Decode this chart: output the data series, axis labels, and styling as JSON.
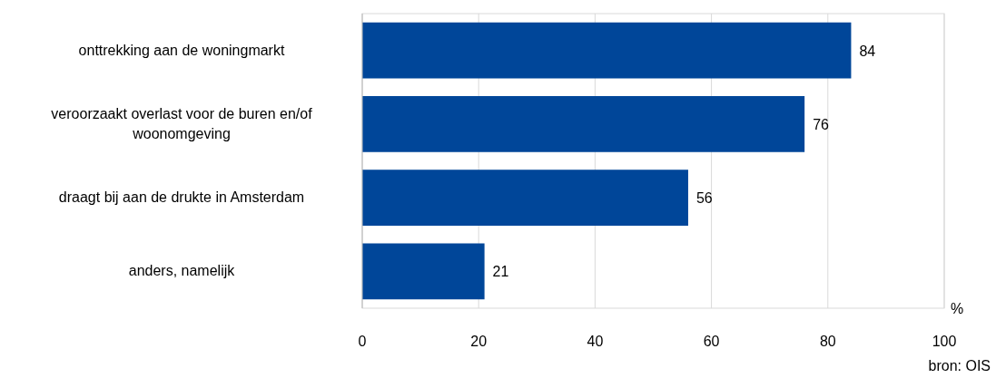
{
  "chart_data": {
    "type": "bar",
    "orientation": "horizontal",
    "categories": [
      "onttrekking aan de woningmarkt",
      "veroorzaakt overlast voor de buren en/of woonomgeving",
      "draagt bij aan de drukte in Amsterdam",
      "anders, namelijk"
    ],
    "values": [
      84,
      76,
      56,
      21
    ],
    "color": "#004699",
    "xlim": [
      0,
      100
    ],
    "xticks": [
      0,
      20,
      40,
      60,
      80,
      100
    ],
    "xlabel": "%",
    "grid": "x",
    "data_labels": true,
    "annotations": [
      "bron: OIS"
    ]
  }
}
